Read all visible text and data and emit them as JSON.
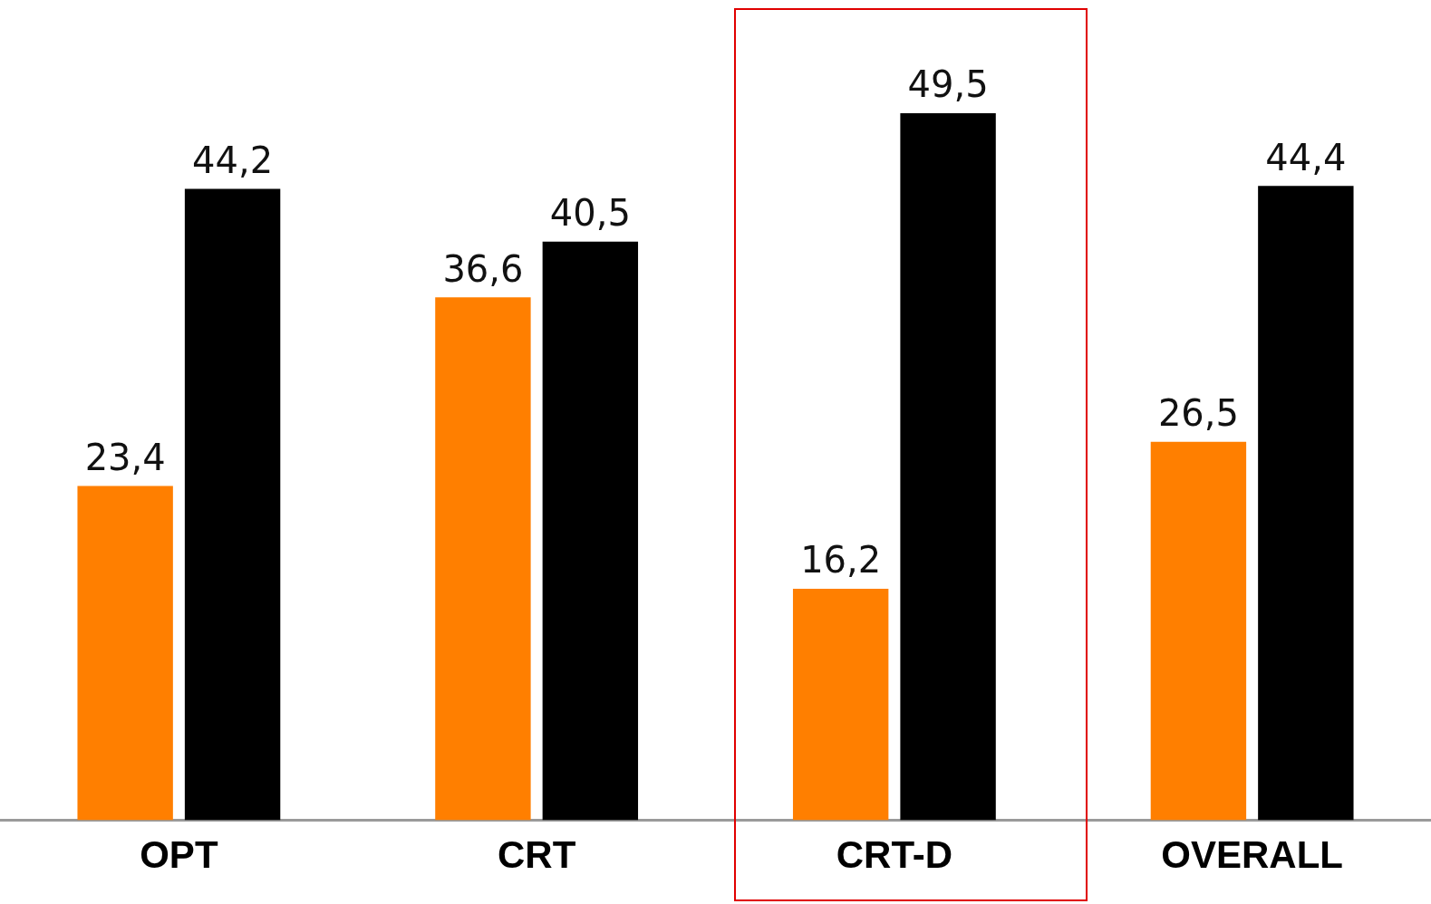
{
  "chart_data": {
    "type": "bar",
    "categories": [
      "OPT",
      "CRT",
      "CRT-D",
      "OVERALL"
    ],
    "series": [
      {
        "color": "#ff7f00",
        "values": [
          23.4,
          36.6,
          16.2,
          26.5
        ],
        "value_labels": [
          "23,4",
          "36,6",
          "16,2",
          "26,5"
        ]
      },
      {
        "color": "#000000",
        "values": [
          44.2,
          40.5,
          49.5,
          44.4
        ],
        "value_labels": [
          "44,2",
          "40,5",
          "49,5",
          "44,4"
        ]
      }
    ],
    "grid": false,
    "legend": false,
    "tick_labels": "x"
  }
}
